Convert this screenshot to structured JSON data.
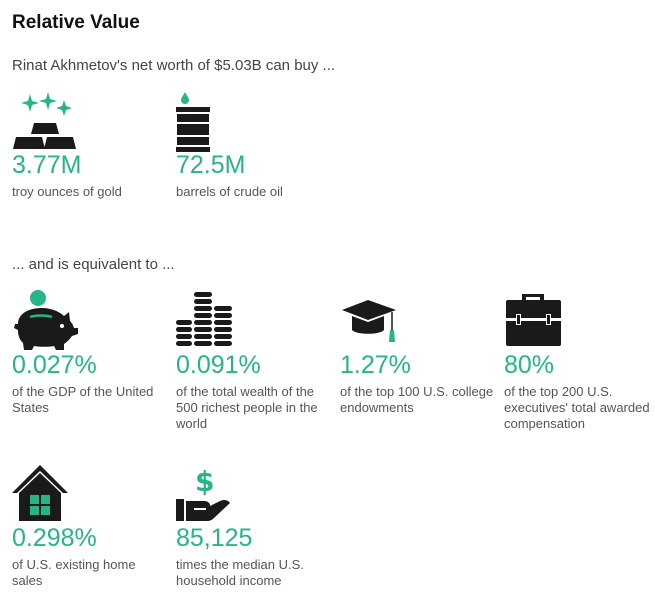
{
  "header": {
    "title": "Relative Value",
    "intro": "Rinat Akhmetov's net worth of $5.03B can buy ...",
    "equivalent_intro": "... and is equivalent to ..."
  },
  "colors": {
    "accent": "#25b586",
    "icon_dark": "#1a1a1a",
    "text_muted": "#555555"
  },
  "buys": [
    {
      "icon": "gold-bars-icon",
      "value": "3.77M",
      "desc": "troy ounces of gold"
    },
    {
      "icon": "oil-barrel-icon",
      "value": "72.5M",
      "desc": "barrels of crude oil"
    }
  ],
  "equivalents": [
    {
      "icon": "piggy-bank-icon",
      "value": "0.027%",
      "desc": "of the GDP of the United States"
    },
    {
      "icon": "coin-stacks-icon",
      "value": "0.091%",
      "desc": "of the total wealth of the 500 richest people in the world"
    },
    {
      "icon": "graduation-cap-icon",
      "value": "1.27%",
      "desc": "of the top 100 U.S. college endowments"
    },
    {
      "icon": "briefcase-icon",
      "value": "80%",
      "desc": "of the top 200 U.S. executives' total awarded compensation"
    },
    {
      "icon": "house-icon",
      "value": "0.298%",
      "desc": "of U.S. existing home sales"
    },
    {
      "icon": "hand-dollar-icon",
      "value": "85,125",
      "desc": "times the median U.S. household income"
    }
  ]
}
